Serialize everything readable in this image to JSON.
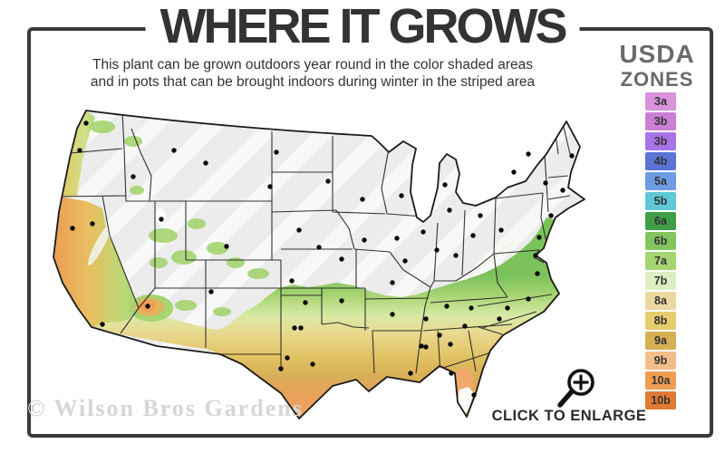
{
  "header": {
    "title": "WHERE IT GROWS",
    "subtitle_line1": "This plant can be grown outdoors year round in the color shaded areas",
    "subtitle_line2": "and in pots that can be brought indoors during winter in the striped area"
  },
  "legend": {
    "title_line1": "USDA",
    "title_line2": "ZONES",
    "zones": [
      {
        "label": "3a",
        "color": "#d893da"
      },
      {
        "label": "3b",
        "color": "#cb7fd4"
      },
      {
        "label": "3b",
        "color": "#a873e6"
      },
      {
        "label": "4b",
        "color": "#5b74d6"
      },
      {
        "label": "5a",
        "color": "#6e9ce4"
      },
      {
        "label": "5b",
        "color": "#5fc8d7"
      },
      {
        "label": "6a",
        "color": "#3f9e47"
      },
      {
        "label": "6b",
        "color": "#82c55e"
      },
      {
        "label": "7a",
        "color": "#a5d470"
      },
      {
        "label": "7b",
        "color": "#dcefc0"
      },
      {
        "label": "8a",
        "color": "#ecd9a1"
      },
      {
        "label": "8b",
        "color": "#e5cd6f"
      },
      {
        "label": "9a",
        "color": "#d6b054"
      },
      {
        "label": "9b",
        "color": "#f4be8a"
      },
      {
        "label": "10a",
        "color": "#f09d51"
      },
      {
        "label": "10b",
        "color": "#e17a33"
      }
    ]
  },
  "footer": {
    "enlarge_label": "CLICK TO ENLARGE",
    "watermark": "© Wilson Bros Gardens"
  },
  "icons": {
    "magnifier": "magnifier-zoom-in-icon"
  }
}
